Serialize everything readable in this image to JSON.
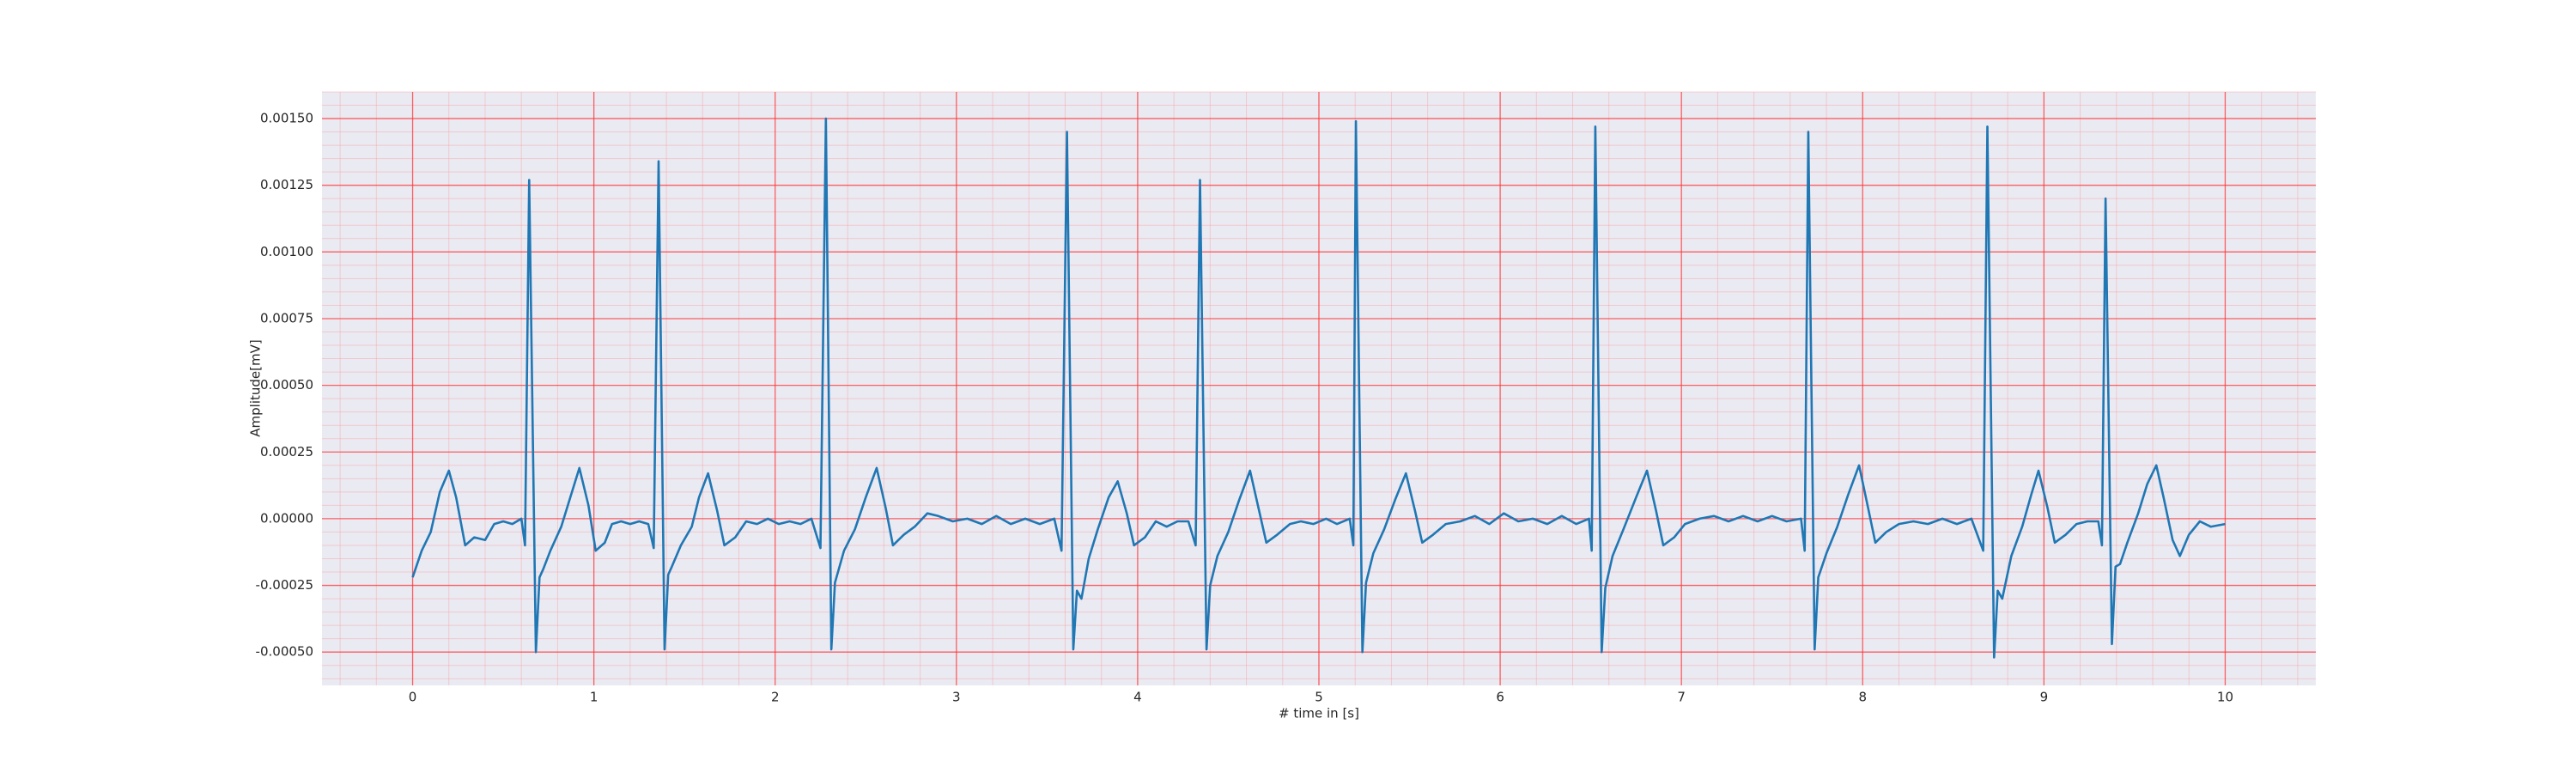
{
  "chart_data": {
    "type": "line",
    "x_label": "# time in [s]",
    "y_label": "Amplitude[mV]",
    "color": "#1f77b4",
    "grid": true,
    "minor_grid": true,
    "xlim": [
      -0.5,
      10.5
    ],
    "ylim": [
      -0.000625,
      0.0016
    ],
    "xticks": [
      0,
      1,
      2,
      3,
      4,
      5,
      6,
      7,
      8,
      9,
      10
    ],
    "yticks": [
      {
        "value": -0.0005,
        "label": "-0.00050"
      },
      {
        "value": -0.00025,
        "label": "-0.00025"
      },
      {
        "value": 0,
        "label": "0.00000"
      },
      {
        "value": 0.00025,
        "label": "0.00025"
      },
      {
        "value": 0.0005,
        "label": "0.00050"
      },
      {
        "value": 0.00075,
        "label": "0.00075"
      },
      {
        "value": 0.001,
        "label": "0.00100"
      },
      {
        "value": 0.00125,
        "label": "0.00125"
      },
      {
        "value": 0.0015,
        "label": "0.00150"
      }
    ],
    "x": [
      0,
      0.05,
      0.1,
      0.15,
      0.2,
      0.24,
      0.29,
      0.34,
      0.4,
      0.45,
      0.5,
      0.55,
      0.6,
      0.62,
      0.643,
      0.68,
      0.7,
      0.72,
      0.76,
      0.82,
      0.87,
      0.92,
      0.97,
      1.01,
      1.06,
      1.1,
      1.15,
      1.2,
      1.25,
      1.3,
      1.33,
      1.357,
      1.39,
      1.41,
      1.43,
      1.48,
      1.54,
      1.58,
      1.63,
      1.68,
      1.72,
      1.78,
      1.84,
      1.9,
      1.96,
      2.02,
      2.08,
      2.14,
      2.2,
      2.25,
      2.28,
      2.31,
      2.33,
      2.38,
      2.44,
      2.5,
      2.56,
      2.61,
      2.65,
      2.71,
      2.77,
      2.84,
      2.9,
      2.98,
      3.06,
      3.14,
      3.22,
      3.3,
      3.38,
      3.46,
      3.54,
      3.58,
      3.61,
      3.645,
      3.665,
      3.69,
      3.73,
      3.78,
      3.84,
      3.89,
      3.94,
      3.98,
      4.04,
      4.1,
      4.16,
      4.22,
      4.28,
      4.32,
      4.344,
      4.38,
      4.4,
      4.44,
      4.5,
      4.56,
      4.62,
      4.67,
      4.71,
      4.77,
      4.84,
      4.9,
      4.97,
      5.04,
      5.1,
      5.17,
      5.19,
      5.204,
      5.24,
      5.26,
      5.3,
      5.36,
      5.42,
      5.48,
      5.53,
      5.57,
      5.63,
      5.7,
      5.78,
      5.86,
      5.94,
      6.02,
      6.1,
      6.18,
      6.26,
      6.34,
      6.42,
      6.49,
      6.505,
      6.525,
      6.56,
      6.58,
      6.62,
      6.68,
      6.75,
      6.81,
      6.86,
      6.9,
      6.96,
      7.02,
      7.1,
      7.18,
      7.26,
      7.34,
      7.42,
      7.5,
      7.58,
      7.66,
      7.68,
      7.7,
      7.735,
      7.755,
      7.8,
      7.86,
      7.92,
      7.98,
      8.03,
      8.07,
      8.13,
      8.2,
      8.28,
      8.36,
      8.44,
      8.52,
      8.6,
      8.665,
      8.688,
      8.725,
      8.745,
      8.77,
      8.82,
      8.88,
      8.93,
      8.97,
      9.02,
      9.06,
      9.12,
      9.18,
      9.24,
      9.3,
      9.32,
      9.34,
      9.375,
      9.395,
      9.42,
      9.46,
      9.52,
      9.57,
      9.62,
      9.66,
      9.71,
      9.75,
      9.8,
      9.86,
      9.92,
      10.0
    ],
    "values": [
      -0.00022,
      -0.00012,
      -5e-05,
      0.0001,
      0.00018,
      8e-05,
      -0.0001,
      -7e-05,
      -8e-05,
      -2e-05,
      -1e-05,
      -2e-05,
      0,
      -0.0001,
      0.00127,
      -0.0005,
      -0.00022,
      -0.00019,
      -0.00012,
      -3e-05,
      8e-05,
      0.00019,
      5e-05,
      -0.00012,
      -9e-05,
      -2e-05,
      -1e-05,
      -2e-05,
      -1e-05,
      -2e-05,
      -0.00011,
      0.00134,
      -0.00049,
      -0.00021,
      -0.00018,
      -0.0001,
      -3e-05,
      8e-05,
      0.00017,
      3e-05,
      -0.0001,
      -7e-05,
      -1e-05,
      -2e-05,
      0,
      -2e-05,
      -1e-05,
      -2e-05,
      0,
      -0.00011,
      0.0015,
      -0.00049,
      -0.00024,
      -0.00012,
      -4e-05,
      8e-05,
      0.00019,
      4e-05,
      -0.0001,
      -6e-05,
      -3e-05,
      2e-05,
      1e-05,
      -1e-05,
      0,
      -2e-05,
      1e-05,
      -2e-05,
      0,
      -2e-05,
      0,
      -0.00012,
      0.00145,
      -0.00049,
      -0.00027,
      -0.0003,
      -0.00015,
      -4e-05,
      8e-05,
      0.00014,
      2e-05,
      -0.0001,
      -7e-05,
      -1e-05,
      -3e-05,
      -1e-05,
      -1e-05,
      -0.0001,
      0.00127,
      -0.00049,
      -0.00025,
      -0.00014,
      -5e-05,
      7e-05,
      0.00018,
      3e-05,
      -9e-05,
      -6e-05,
      -2e-05,
      -1e-05,
      -2e-05,
      0,
      -2e-05,
      0,
      -0.0001,
      0.00149,
      -0.0005,
      -0.00024,
      -0.00013,
      -4e-05,
      7e-05,
      0.00017,
      3e-05,
      -9e-05,
      -6e-05,
      -2e-05,
      -1e-05,
      1e-05,
      -2e-05,
      2e-05,
      -1e-05,
      0,
      -2e-05,
      1e-05,
      -2e-05,
      0,
      -0.00012,
      0.00147,
      -0.0005,
      -0.00026,
      -0.00014,
      -4e-05,
      8e-05,
      0.00018,
      3e-05,
      -0.0001,
      -7e-05,
      -2e-05,
      0,
      1e-05,
      -1e-05,
      1e-05,
      -1e-05,
      1e-05,
      -1e-05,
      0,
      -0.00012,
      0.00145,
      -0.00049,
      -0.00022,
      -0.00013,
      -3e-05,
      9e-05,
      0.0002,
      4e-05,
      -9e-05,
      -5e-05,
      -2e-05,
      -1e-05,
      -2e-05,
      0,
      -2e-05,
      0,
      -0.00012,
      0.00147,
      -0.00052,
      -0.00027,
      -0.0003,
      -0.00014,
      -3e-05,
      9e-05,
      0.00018,
      4e-05,
      -9e-05,
      -6e-05,
      -2e-05,
      -1e-05,
      -1e-05,
      -0.0001,
      0.0012,
      -0.00047,
      -0.00018,
      -0.00017,
      -9e-05,
      2e-05,
      0.00013,
      0.0002,
      8e-05,
      -8e-05,
      -0.00014,
      -6e-05,
      -1e-05,
      -3e-05,
      -2e-05
    ]
  }
}
